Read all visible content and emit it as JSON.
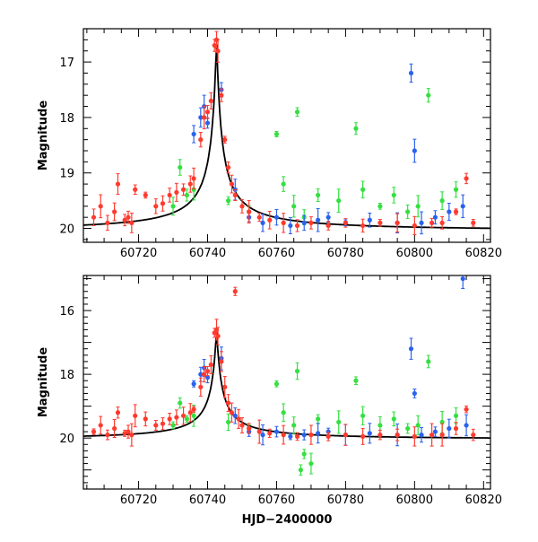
{
  "chart_data": [
    {
      "type": "scatter",
      "panel": "top",
      "xlim": [
        60704,
        60822
      ],
      "ylim": [
        20.25,
        16.4
      ],
      "y_inverted": true,
      "xticks": [
        "60720",
        "60740",
        "60760",
        "60780",
        "60800",
        "60820"
      ],
      "yticks": [
        "17",
        "18",
        "19",
        "20"
      ],
      "xlabel": "",
      "ylabel": "Magnitude",
      "model_curve": {
        "color": "#000000",
        "peak_x": 60742.6,
        "peak_mag": 16.6,
        "baseline_mag": 20.05
      },
      "series": [
        {
          "color": "#ff3a2e",
          "points": [
            [
              60707,
              19.8
            ],
            [
              60709,
              19.6
            ],
            [
              60711,
              19.9
            ],
            [
              60713,
              19.7
            ],
            [
              60714,
              19.2
            ],
            [
              60716,
              19.85
            ],
            [
              60717,
              19.8
            ],
            [
              60718,
              19.9
            ],
            [
              60719,
              19.3
            ],
            [
              60722,
              19.4
            ],
            [
              60725,
              19.6
            ],
            [
              60727,
              19.55
            ],
            [
              60729,
              19.4
            ],
            [
              60731,
              19.35
            ],
            [
              60733,
              19.3
            ],
            [
              60735,
              19.2
            ],
            [
              60736,
              19.1
            ],
            [
              60738,
              18.4
            ],
            [
              60739,
              18.0
            ],
            [
              60740,
              17.9
            ],
            [
              60741,
              17.7
            ],
            [
              60742,
              16.7
            ],
            [
              60742.6,
              16.6
            ],
            [
              60743,
              16.8
            ],
            [
              60744,
              17.6
            ],
            [
              60745,
              18.4
            ],
            [
              60746,
              18.9
            ],
            [
              60747,
              19.2
            ],
            [
              60748,
              19.4
            ],
            [
              60750,
              19.6
            ],
            [
              60752,
              19.7
            ],
            [
              60755,
              19.8
            ],
            [
              60758,
              19.85
            ],
            [
              60762,
              19.9
            ],
            [
              60766,
              19.95
            ],
            [
              60770,
              19.9
            ],
            [
              60775,
              19.95
            ],
            [
              60780,
              19.9
            ],
            [
              60785,
              19.95
            ],
            [
              60790,
              19.9
            ],
            [
              60795,
              19.9
            ],
            [
              60800,
              19.95
            ],
            [
              60805,
              19.9
            ],
            [
              60808,
              19.9
            ],
            [
              60812,
              19.7
            ],
            [
              60815,
              19.1
            ],
            [
              60817,
              19.9
            ]
          ]
        },
        {
          "color": "#2a62ee",
          "points": [
            [
              60736,
              18.3
            ],
            [
              60738,
              18.0
            ],
            [
              60739,
              17.8
            ],
            [
              60740,
              18.1
            ],
            [
              60744,
              17.5
            ],
            [
              60748,
              19.3
            ],
            [
              60752,
              19.8
            ],
            [
              60756,
              19.9
            ],
            [
              60760,
              19.8
            ],
            [
              60764,
              19.95
            ],
            [
              60768,
              19.9
            ],
            [
              60772,
              19.85
            ],
            [
              60775,
              19.8
            ],
            [
              60780,
              19.9
            ],
            [
              60787,
              19.85
            ],
            [
              60795,
              19.9
            ],
            [
              60799,
              17.2
            ],
            [
              60800,
              18.6
            ],
            [
              60802,
              19.9
            ],
            [
              60806,
              19.8
            ],
            [
              60810,
              19.7
            ],
            [
              60814,
              19.6
            ]
          ]
        },
        {
          "color": "#33e040",
          "points": [
            [
              60730,
              19.6
            ],
            [
              60732,
              18.9
            ],
            [
              60734,
              19.4
            ],
            [
              60736,
              19.3
            ],
            [
              60746,
              19.5
            ],
            [
              60752,
              19.7
            ],
            [
              60760,
              18.3
            ],
            [
              60762,
              19.2
            ],
            [
              60765,
              19.6
            ],
            [
              60766,
              17.9
            ],
            [
              60768,
              19.8
            ],
            [
              60772,
              19.4
            ],
            [
              60778,
              19.5
            ],
            [
              60783,
              18.2
            ],
            [
              60785,
              19.3
            ],
            [
              60790,
              19.6
            ],
            [
              60794,
              19.4
            ],
            [
              60798,
              19.7
            ],
            [
              60801,
              19.6
            ],
            [
              60804,
              17.6
            ],
            [
              60808,
              19.5
            ],
            [
              60812,
              19.3
            ]
          ]
        }
      ]
    },
    {
      "type": "scatter",
      "panel": "bottom",
      "xlim": [
        60704,
        60822
      ],
      "ylim": [
        21.6,
        14.9
      ],
      "y_inverted": true,
      "xticks": [
        "60720",
        "60740",
        "60760",
        "60780",
        "60800",
        "60820"
      ],
      "yticks": [
        "16",
        "18",
        "20"
      ],
      "xlabel": "HJD−2400000",
      "ylabel": "Magnitude",
      "model_curve": {
        "color": "#000000",
        "peak_x": 60742.6,
        "peak_mag": 16.6,
        "baseline_mag": 20.05
      },
      "series": [
        {
          "color": "#ff3a2e",
          "points": [
            [
              60707,
              19.8
            ],
            [
              60709,
              19.6
            ],
            [
              60711,
              19.9
            ],
            [
              60713,
              19.7
            ],
            [
              60714,
              19.2
            ],
            [
              60716,
              19.85
            ],
            [
              60717,
              19.8
            ],
            [
              60718,
              19.9
            ],
            [
              60719,
              19.3
            ],
            [
              60722,
              19.4
            ],
            [
              60725,
              19.6
            ],
            [
              60727,
              19.55
            ],
            [
              60729,
              19.4
            ],
            [
              60731,
              19.35
            ],
            [
              60733,
              19.3
            ],
            [
              60735,
              19.2
            ],
            [
              60736,
              19.1
            ],
            [
              60738,
              18.4
            ],
            [
              60739,
              18.0
            ],
            [
              60740,
              17.9
            ],
            [
              60741,
              17.7
            ],
            [
              60742,
              16.7
            ],
            [
              60742.6,
              16.6
            ],
            [
              60743,
              16.8
            ],
            [
              60744,
              17.6
            ],
            [
              60745,
              18.4
            ],
            [
              60746,
              18.9
            ],
            [
              60747,
              19.2
            ],
            [
              60748,
              15.4
            ],
            [
              60749,
              19.4
            ],
            [
              60750,
              19.6
            ],
            [
              60752,
              19.7
            ],
            [
              60755,
              19.8
            ],
            [
              60758,
              19.85
            ],
            [
              60762,
              19.9
            ],
            [
              60766,
              19.95
            ],
            [
              60770,
              19.9
            ],
            [
              60775,
              19.95
            ],
            [
              60780,
              19.9
            ],
            [
              60785,
              19.95
            ],
            [
              60790,
              19.9
            ],
            [
              60795,
              19.9
            ],
            [
              60800,
              19.95
            ],
            [
              60805,
              19.9
            ],
            [
              60808,
              19.9
            ],
            [
              60812,
              19.7
            ],
            [
              60815,
              19.1
            ],
            [
              60817,
              19.9
            ]
          ]
        },
        {
          "color": "#2a62ee",
          "points": [
            [
              60736,
              18.3
            ],
            [
              60738,
              18.0
            ],
            [
              60739,
              17.8
            ],
            [
              60740,
              18.1
            ],
            [
              60744,
              17.5
            ],
            [
              60748,
              19.3
            ],
            [
              60752,
              19.8
            ],
            [
              60756,
              19.9
            ],
            [
              60760,
              19.8
            ],
            [
              60764,
              19.95
            ],
            [
              60768,
              19.9
            ],
            [
              60772,
              19.85
            ],
            [
              60775,
              19.8
            ],
            [
              60780,
              19.9
            ],
            [
              60787,
              19.85
            ],
            [
              60795,
              19.9
            ],
            [
              60799,
              17.2
            ],
            [
              60800,
              18.6
            ],
            [
              60802,
              19.9
            ],
            [
              60806,
              19.8
            ],
            [
              60810,
              19.7
            ],
            [
              60814,
              15.0
            ],
            [
              60815,
              19.6
            ]
          ]
        },
        {
          "color": "#33e040",
          "points": [
            [
              60730,
              19.6
            ],
            [
              60732,
              18.9
            ],
            [
              60734,
              19.4
            ],
            [
              60736,
              19.3
            ],
            [
              60746,
              19.5
            ],
            [
              60752,
              19.7
            ],
            [
              60760,
              18.3
            ],
            [
              60762,
              19.2
            ],
            [
              60765,
              19.6
            ],
            [
              60766,
              17.9
            ],
            [
              60767,
              21.0
            ],
            [
              60768,
              20.5
            ],
            [
              60770,
              20.8
            ],
            [
              60772,
              19.4
            ],
            [
              60778,
              19.5
            ],
            [
              60783,
              18.2
            ],
            [
              60785,
              19.3
            ],
            [
              60790,
              19.6
            ],
            [
              60794,
              19.4
            ],
            [
              60798,
              19.7
            ],
            [
              60801,
              19.6
            ],
            [
              60804,
              17.6
            ],
            [
              60808,
              19.5
            ],
            [
              60812,
              19.3
            ]
          ]
        }
      ]
    }
  ]
}
